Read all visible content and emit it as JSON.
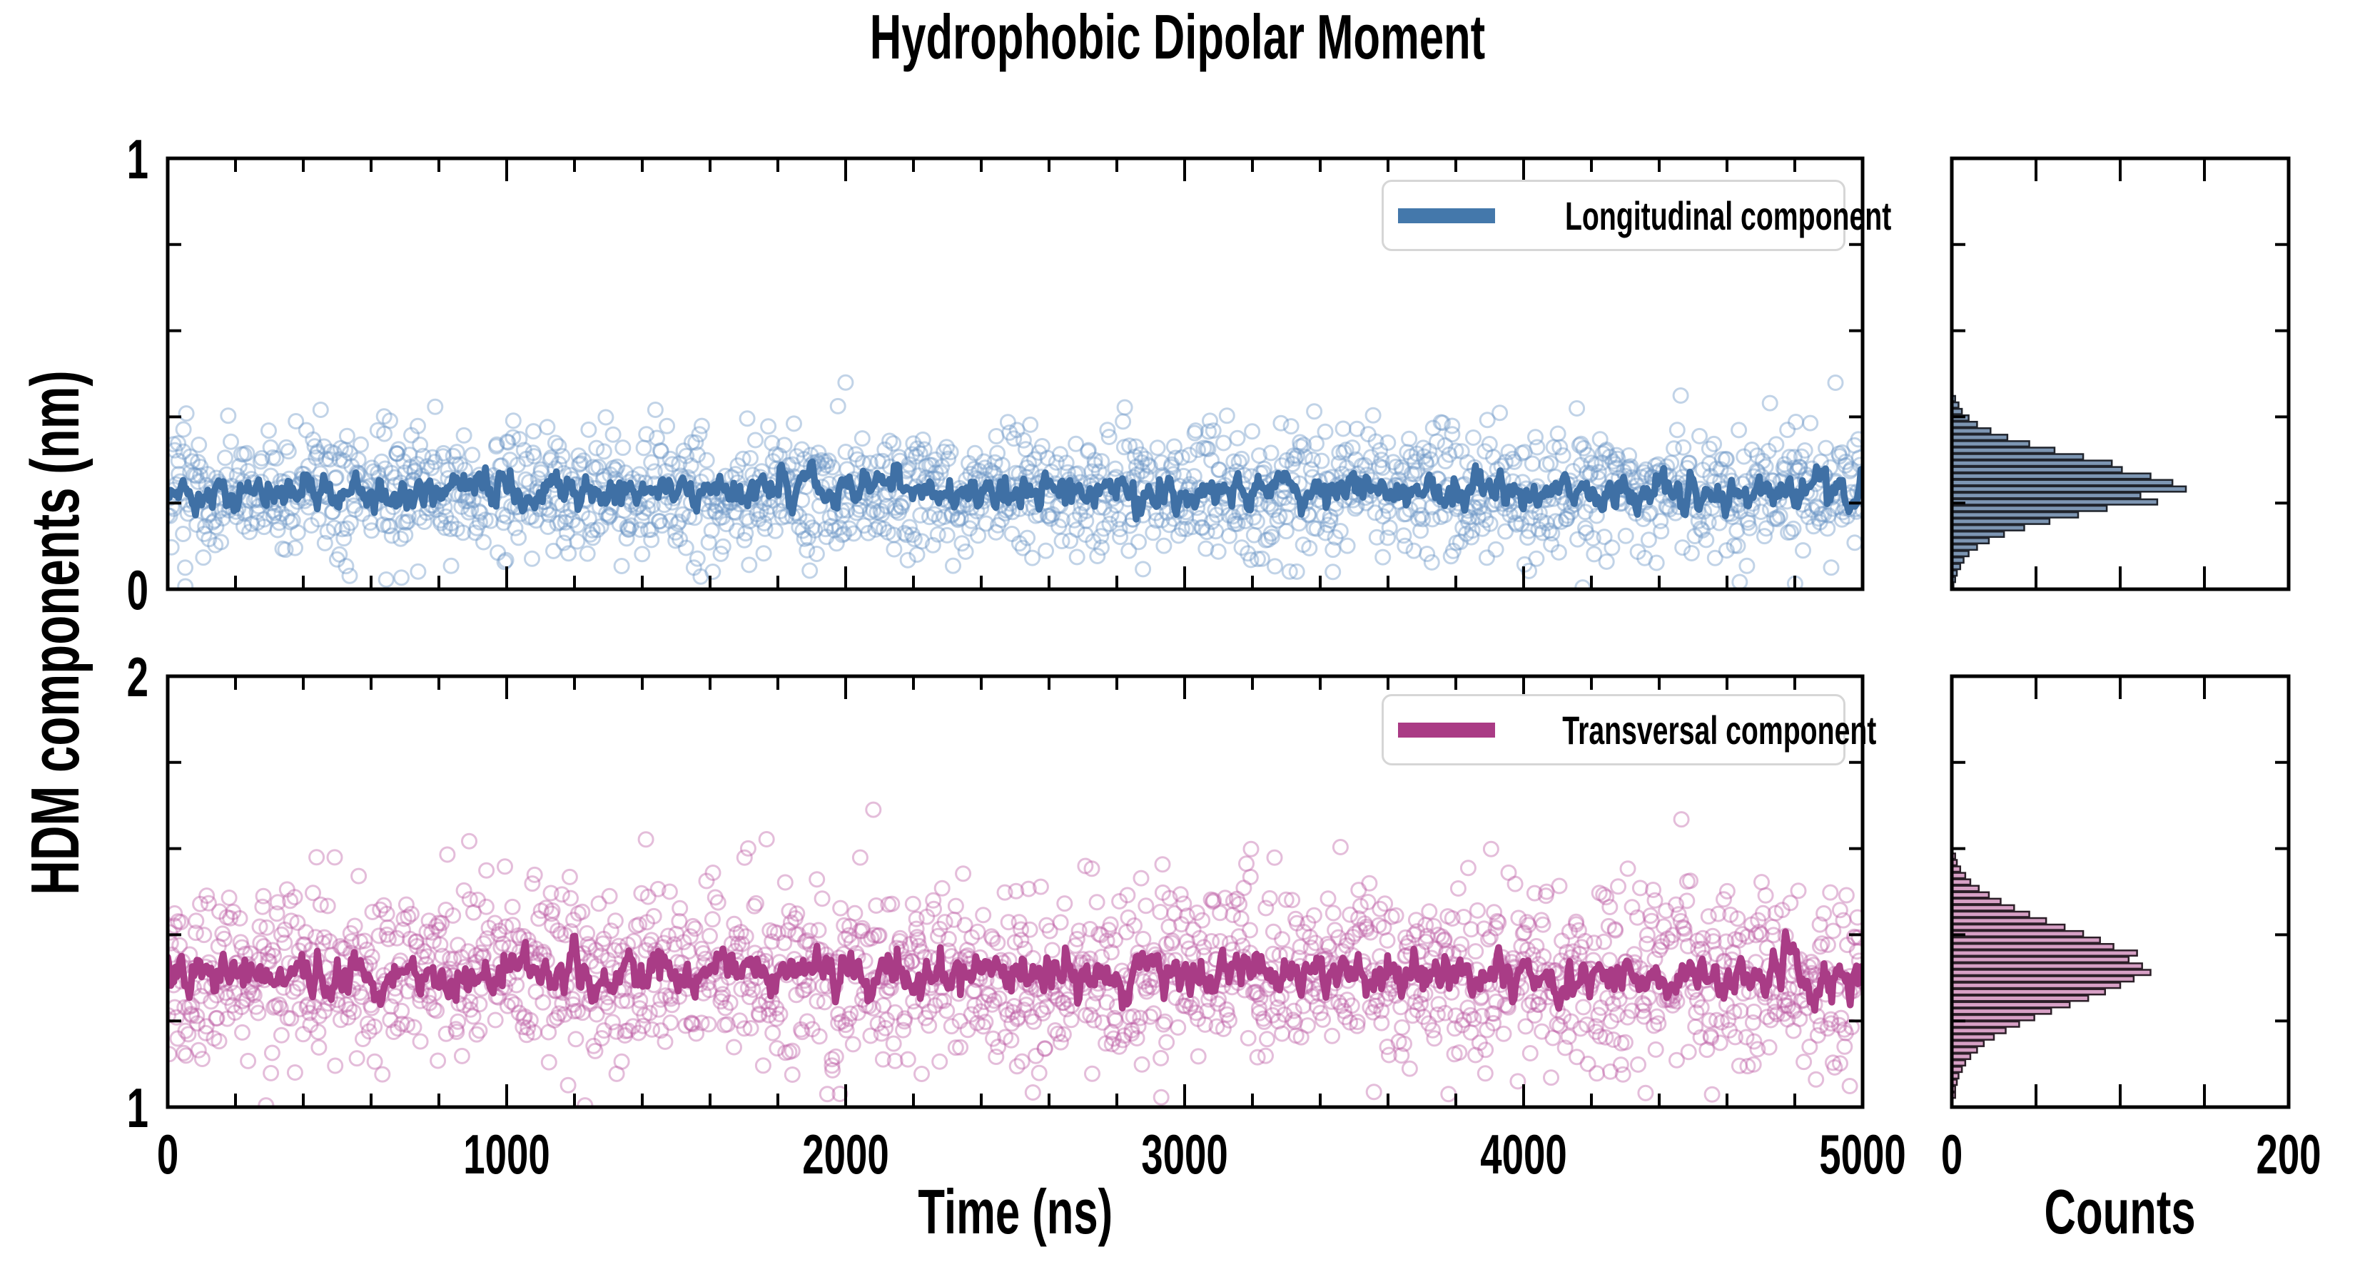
{
  "figure": {
    "title": "Hydrophobic Dipolar Moment",
    "ylabel": "HDM components (nm)",
    "xlabel": "Time (ns)",
    "counts_label": "Counts",
    "background": "#ffffff",
    "axis_color": "#000000",
    "legend_border_color": "#d6d6d6"
  },
  "chart_data": [
    {
      "id": "longitudinal-timeseries",
      "type": "scatter",
      "xlim": [
        0,
        5000
      ],
      "ylim": [
        0,
        1
      ],
      "x_major_ticks": [
        0,
        1000,
        2000,
        3000,
        4000,
        5000
      ],
      "x_minor_step": 200,
      "y_major_ticks": [
        0,
        1
      ],
      "y_minor_step": 0.2,
      "x_tick_labels_visible": false,
      "y_tick_labels_visible": true,
      "grid": false,
      "legend": {
        "label": "Longitudinal component",
        "color": "#4478ab",
        "position": "upper right"
      },
      "series": [
        {
          "name": "longitudinal samples",
          "kind": "scatter",
          "marker": "open-circle",
          "color": "#6b95c5",
          "opacity": 0.42,
          "n": 1800,
          "mean": 0.225,
          "sd": 0.075,
          "seed": 101
        },
        {
          "name": "longitudinal running mean",
          "kind": "line",
          "color": "#3f70a5",
          "width": 9.5,
          "mean": 0.225,
          "sd": 0.021,
          "smooth": 0.62,
          "seed": 102
        }
      ]
    },
    {
      "id": "longitudinal-histogram",
      "type": "bar",
      "orientation": "horizontal",
      "xlim": [
        0,
        200
      ],
      "ylim": [
        0,
        1
      ],
      "x_ticks": [
        0,
        50,
        100,
        150,
        200
      ],
      "x_tick_labels": [
        "0",
        "",
        "",
        "",
        "200"
      ],
      "y_minor_step": 0.2,
      "y_major_ticks": [
        0,
        1
      ],
      "bins": {
        "start": 0.0,
        "width": 0.015
      },
      "counts": [
        1,
        2,
        3,
        5,
        7,
        10,
        15,
        22,
        31,
        43,
        58,
        75,
        92,
        122,
        112,
        139,
        131,
        118,
        101,
        95,
        78,
        61,
        46,
        33,
        23,
        15,
        10,
        6,
        4,
        2
      ],
      "fill": "#7d96b3",
      "edge": "#20242c"
    },
    {
      "id": "transversal-timeseries",
      "type": "scatter",
      "xlim": [
        0,
        5000
      ],
      "ylim": [
        1,
        2
      ],
      "x_major_ticks": [
        0,
        1000,
        2000,
        3000,
        4000,
        5000
      ],
      "x_minor_step": 200,
      "y_major_ticks": [
        1,
        2
      ],
      "y_minor_step": 0.2,
      "x_tick_labels_visible": true,
      "y_tick_labels_visible": true,
      "grid": false,
      "legend": {
        "label": "Transversal component",
        "color": "#aa3b85",
        "position": "upper right"
      },
      "series": [
        {
          "name": "transversal samples",
          "kind": "scatter",
          "marker": "open-circle",
          "color": "#bb5ba3",
          "opacity": 0.4,
          "n": 1800,
          "mean": 1.31,
          "sd": 0.105,
          "seed": 201
        },
        {
          "name": "transversal running mean",
          "kind": "line",
          "color": "#a93c86",
          "width": 9.5,
          "mean": 1.308,
          "sd": 0.026,
          "smooth": 0.62,
          "seed": 202
        }
      ]
    },
    {
      "id": "transversal-histogram",
      "type": "bar",
      "orientation": "horizontal",
      "xlim": [
        0,
        200
      ],
      "ylim": [
        1,
        2
      ],
      "x_ticks": [
        0,
        50,
        100,
        150,
        200
      ],
      "x_tick_labels": [
        "0",
        "",
        "",
        "",
        "200"
      ],
      "y_minor_step": 0.2,
      "y_major_ticks": [
        1,
        2
      ],
      "bins": {
        "start": 1.02,
        "width": 0.015
      },
      "counts": [
        2,
        2,
        3,
        4,
        6,
        8,
        11,
        15,
        19,
        25,
        32,
        40,
        49,
        59,
        70,
        81,
        91,
        100,
        108,
        118,
        113,
        105,
        110,
        96,
        88,
        78,
        67,
        56,
        46,
        37,
        29,
        22,
        16,
        11,
        8,
        5,
        3,
        2
      ],
      "fill": "#d7a0c5",
      "edge": "#2c1f28"
    }
  ]
}
